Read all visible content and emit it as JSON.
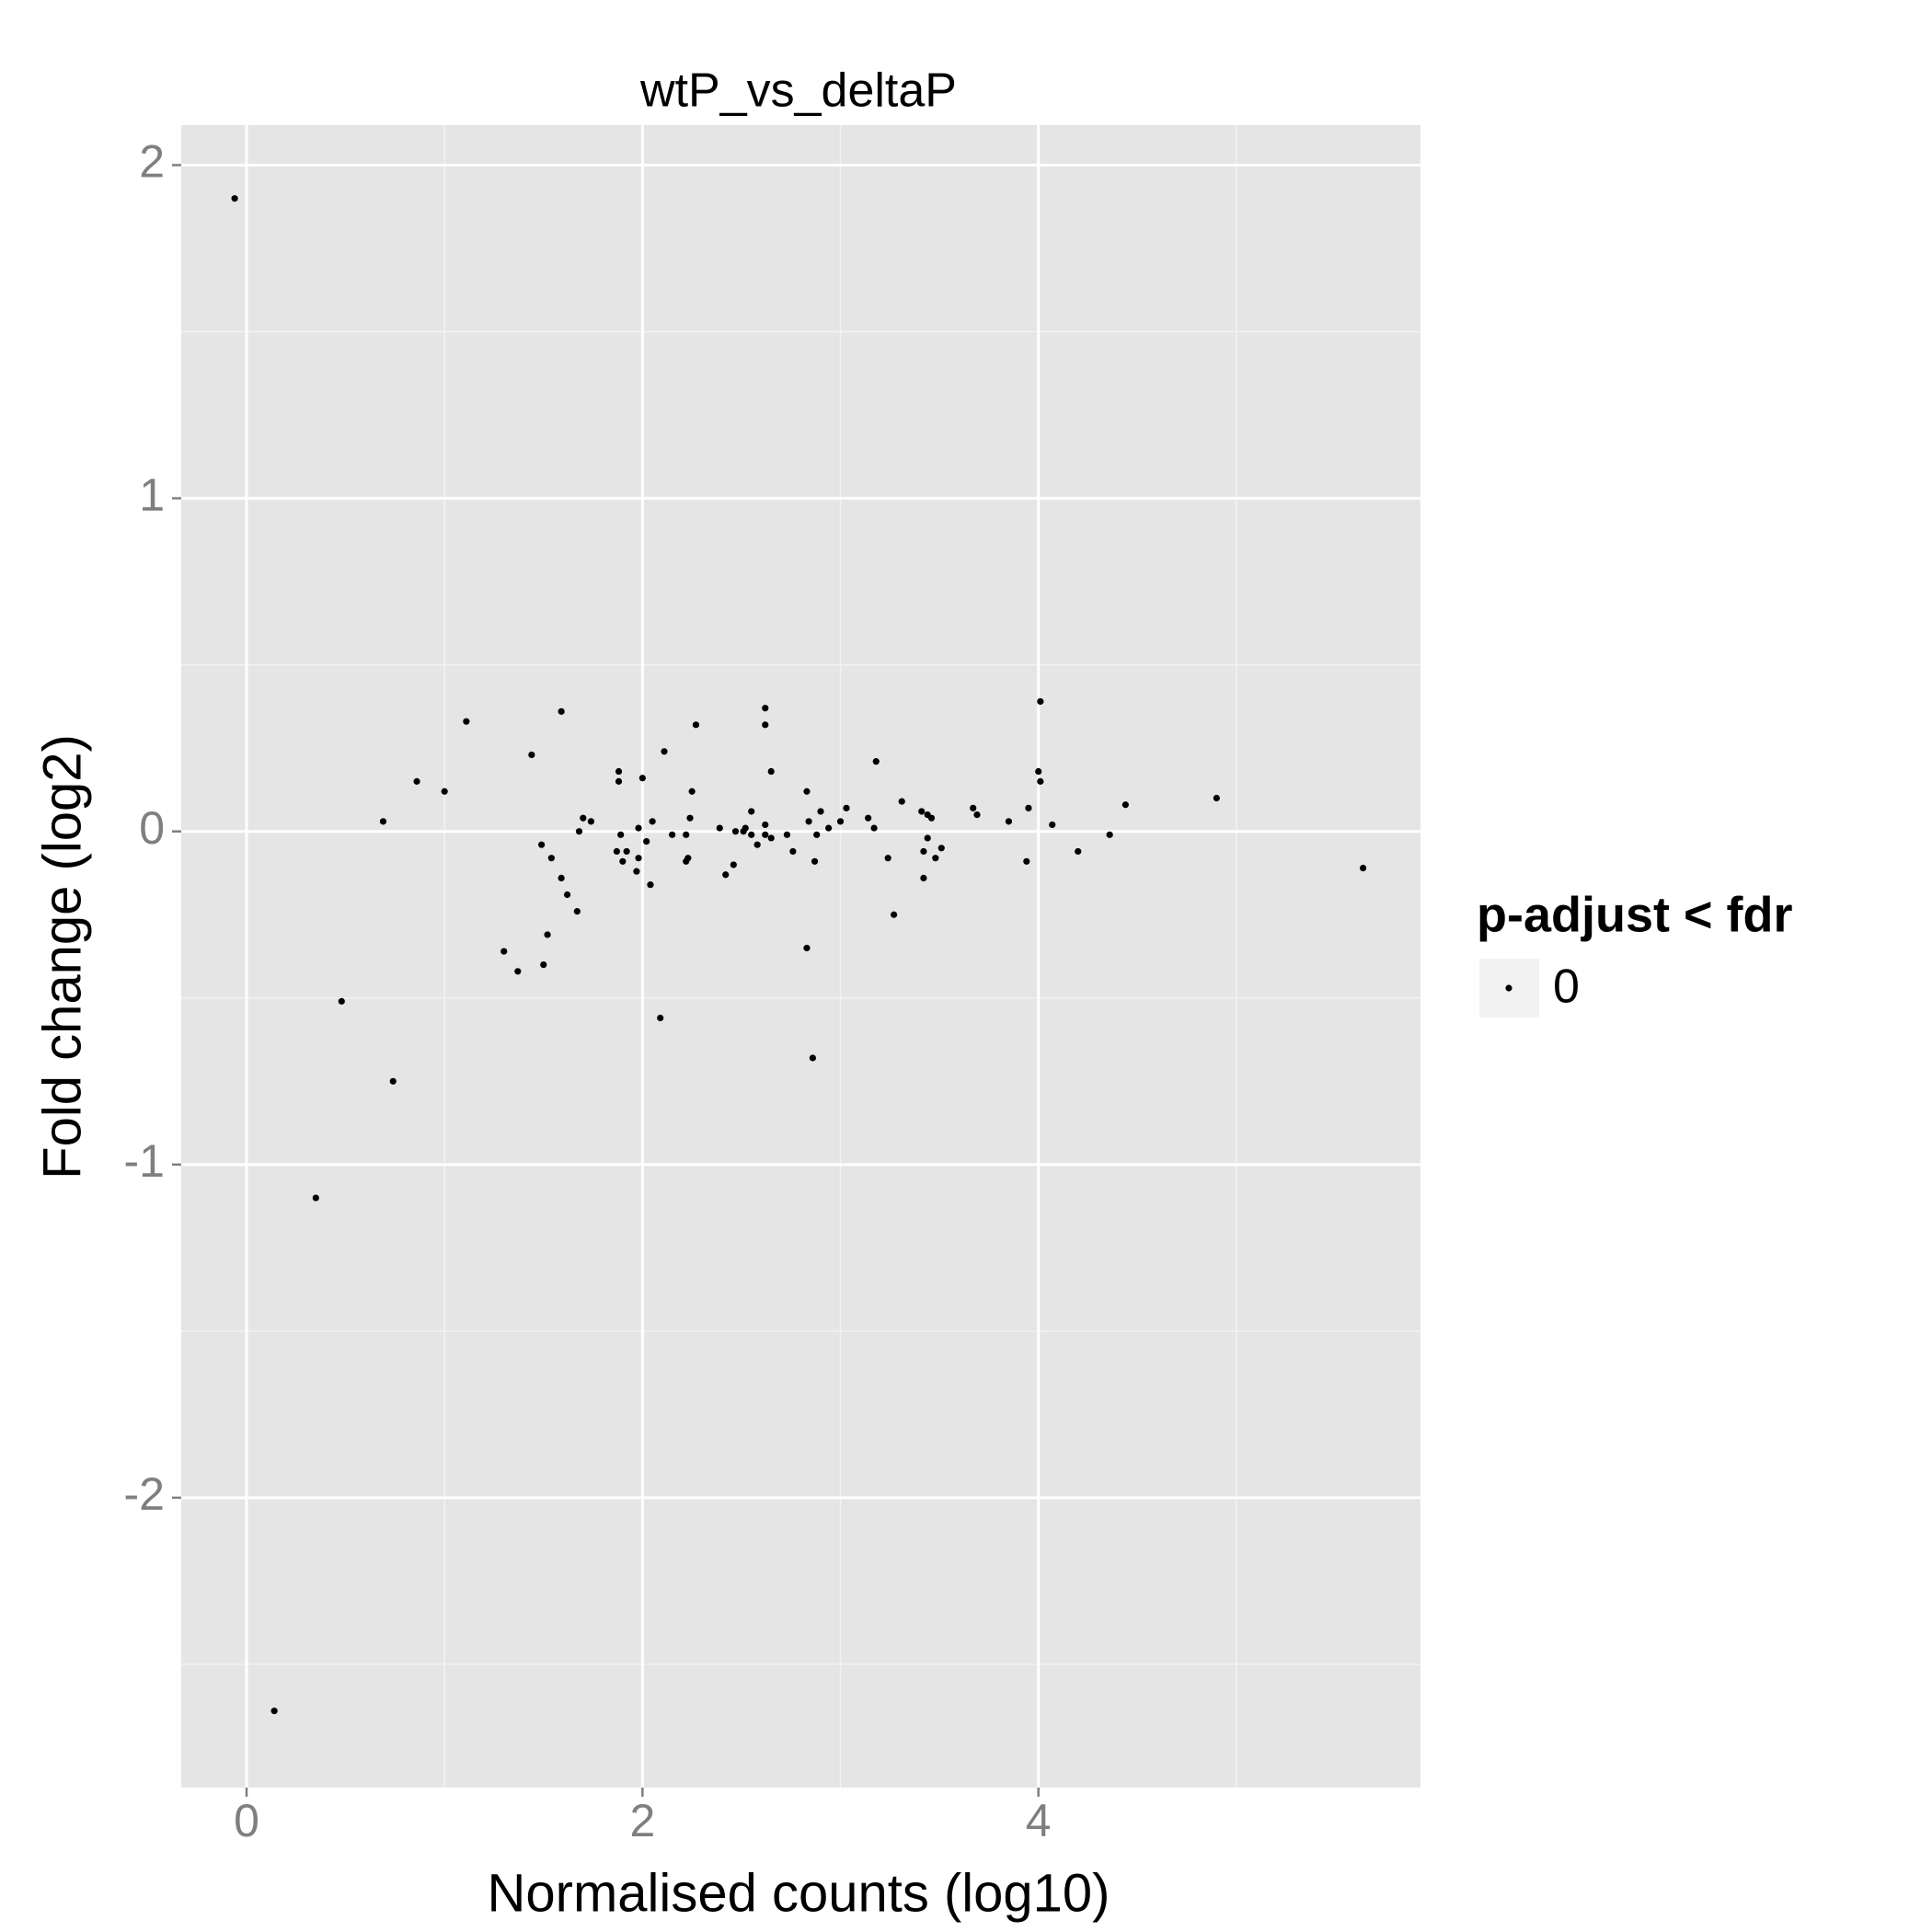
{
  "chart_data": {
    "type": "scatter",
    "title": "wtP_vs_deltaP",
    "x_label": "Normalised counts (log10)",
    "y_label": "Fold change (log2)",
    "legend_title": "p-adjust < fdr",
    "legend_position": "right",
    "xlim": [
      -0.33,
      5.93
    ],
    "ylim": [
      -2.87,
      2.12
    ],
    "xticks": [
      0,
      2,
      4
    ],
    "yticks": [
      -2,
      -1,
      0,
      1,
      2
    ],
    "grid": true,
    "series": [
      {
        "name": "0",
        "color": "#000000",
        "x": [
          -0.06,
          0.14,
          0.35,
          0.48,
          0.74,
          0.69,
          0.86,
          1.0,
          1.11,
          1.44,
          1.59,
          1.3,
          1.37,
          1.49,
          1.5,
          1.52,
          1.54,
          1.59,
          1.62,
          1.67,
          1.68,
          1.7,
          1.74,
          1.87,
          1.88,
          1.88,
          1.89,
          1.9,
          1.92,
          1.97,
          1.98,
          1.98,
          2.0,
          2.02,
          2.04,
          2.05,
          2.09,
          2.11,
          2.15,
          2.22,
          2.22,
          2.23,
          2.24,
          2.25,
          2.27,
          2.39,
          2.42,
          2.46,
          2.47,
          2.51,
          2.52,
          2.55,
          2.55,
          2.58,
          2.62,
          2.62,
          2.62,
          2.62,
          2.65,
          2.65,
          2.73,
          2.76,
          2.83,
          2.83,
          2.84,
          2.86,
          2.87,
          2.88,
          2.9,
          2.94,
          3.0,
          3.03,
          3.14,
          3.17,
          3.18,
          3.24,
          3.27,
          3.31,
          3.41,
          3.42,
          3.42,
          3.44,
          3.44,
          3.46,
          3.48,
          3.51,
          3.67,
          3.69,
          3.85,
          3.94,
          3.95,
          4.0,
          4.01,
          4.01,
          4.07,
          4.2,
          4.36,
          4.44,
          4.9,
          5.64
        ],
        "values": [
          1.9,
          -2.64,
          -1.1,
          -0.51,
          -0.75,
          0.03,
          0.15,
          0.12,
          0.33,
          0.23,
          0.36,
          -0.36,
          -0.42,
          -0.04,
          -0.4,
          -0.31,
          -0.08,
          -0.14,
          -0.19,
          -0.24,
          0.0,
          0.04,
          0.03,
          -0.06,
          0.15,
          0.18,
          -0.01,
          -0.09,
          -0.06,
          -0.12,
          0.01,
          -0.08,
          0.16,
          -0.03,
          -0.16,
          0.03,
          -0.56,
          0.24,
          -0.01,
          -0.01,
          -0.09,
          -0.08,
          0.04,
          0.12,
          0.32,
          0.01,
          -0.13,
          -0.1,
          0.0,
          0.0,
          0.01,
          -0.01,
          0.06,
          -0.04,
          0.37,
          0.32,
          0.02,
          -0.01,
          -0.02,
          0.18,
          -0.01,
          -0.06,
          0.12,
          -0.35,
          0.03,
          -0.68,
          -0.09,
          -0.01,
          0.06,
          0.01,
          0.03,
          0.07,
          0.04,
          0.01,
          0.21,
          -0.08,
          -0.25,
          0.09,
          0.06,
          -0.06,
          -0.14,
          0.05,
          -0.02,
          0.04,
          -0.08,
          -0.05,
          0.07,
          0.05,
          0.03,
          -0.09,
          0.07,
          0.18,
          0.39,
          0.15,
          0.02,
          -0.06,
          -0.01,
          0.08,
          0.1,
          -0.11
        ]
      }
    ]
  }
}
